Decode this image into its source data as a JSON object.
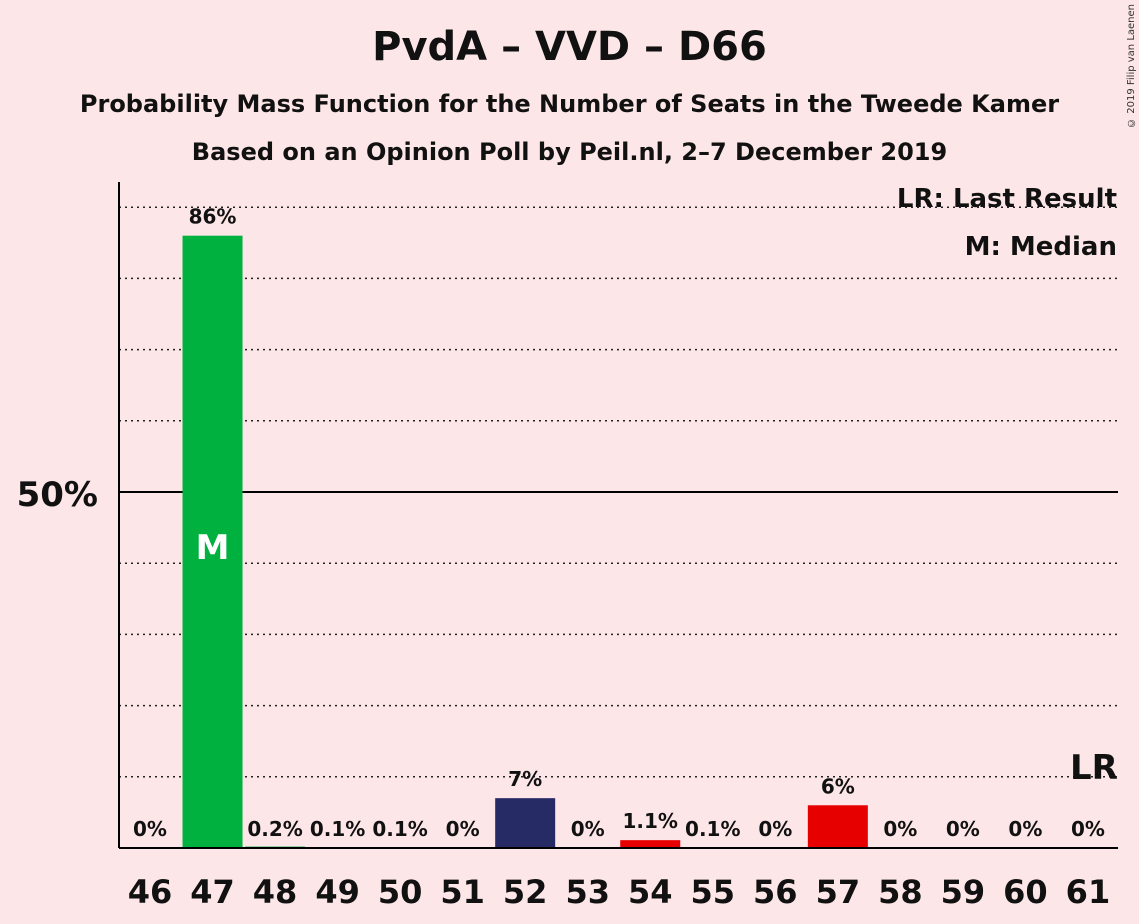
{
  "header": {
    "title": "PvdA – VVD – D66",
    "subtitle1": "Probability Mass Function for the Number of Seats in the Tweede Kamer",
    "subtitle2": "Based on an Opinion Poll by Peil.nl, 2–7 December 2019",
    "copyright": "© 2019 Filip van Laenen"
  },
  "legend": {
    "lr": "LR: Last Result",
    "m": "M: Median"
  },
  "chart_data": {
    "type": "bar",
    "categories": [
      "46",
      "47",
      "48",
      "49",
      "50",
      "51",
      "52",
      "53",
      "54",
      "55",
      "56",
      "57",
      "58",
      "59",
      "60",
      "61"
    ],
    "values": [
      0,
      86,
      0.2,
      0.1,
      0.1,
      0,
      7,
      0,
      1.1,
      0.1,
      0,
      6,
      0,
      0,
      0,
      0
    ],
    "labels": [
      "0%",
      "86%",
      "0.2%",
      "0.1%",
      "0.1%",
      "0%",
      "7%",
      "0%",
      "1.1%",
      "0.1%",
      "0%",
      "6%",
      "0%",
      "0%",
      "0%",
      "0%"
    ],
    "colors": [
      "#00b140",
      "#00b140",
      "#00b140",
      "#00b140",
      "#00b140",
      "#00b140",
      "#262b66",
      "#262b66",
      "#e60000",
      "#e60000",
      "#e60000",
      "#e60000",
      "#e60000",
      "#e60000",
      "#e60000",
      "#e60000"
    ],
    "ylim": [
      0,
      100
    ],
    "ytick_label": "50%",
    "median_marker": {
      "category": "47",
      "text": "M"
    },
    "last_result_marker": {
      "category": "61",
      "text": "LR"
    },
    "grid": "dotted"
  }
}
